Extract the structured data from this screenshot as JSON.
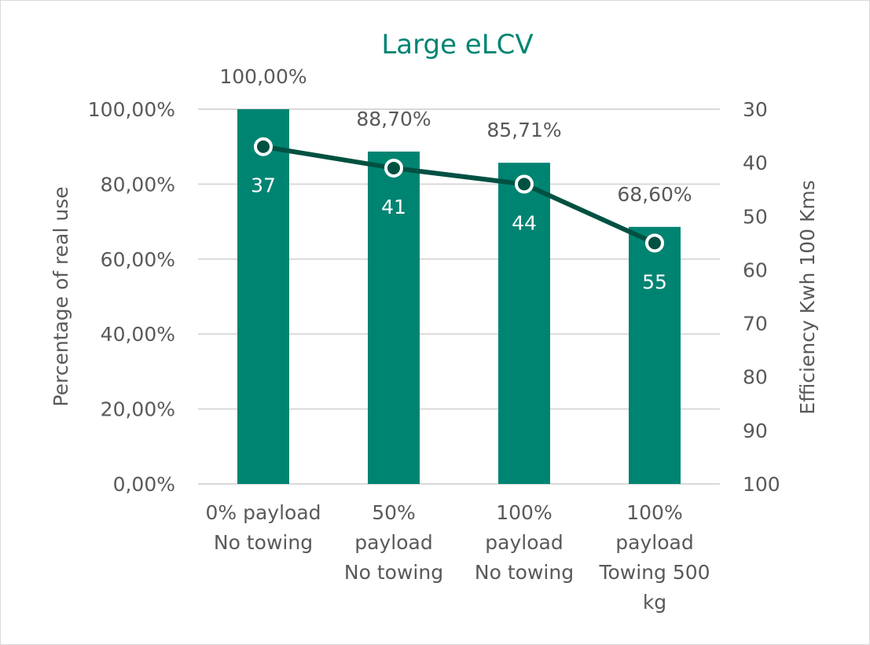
{
  "chart_data": {
    "type": "bar",
    "title": "Large eLCV",
    "categories": [
      [
        "0% payload",
        "No towing"
      ],
      [
        "50%",
        "payload",
        "No towing"
      ],
      [
        "100%",
        "payload",
        "No towing"
      ],
      [
        "100%",
        "payload",
        "Towing 500",
        "kg"
      ]
    ],
    "series": [
      {
        "name": "Percentage of real use",
        "type": "bar",
        "axis": "left",
        "values": [
          100.0,
          88.7,
          85.71,
          68.6
        ],
        "labels": [
          "100,00%",
          "88,70%",
          "85,71%",
          "68,60%"
        ]
      },
      {
        "name": "Efficiency Kwh 100 Kms",
        "type": "line",
        "axis": "right",
        "values": [
          37,
          41,
          44,
          55
        ],
        "labels": [
          "37",
          "41",
          "44",
          "55"
        ]
      }
    ],
    "ylabel": "Percentage of real use",
    "ylim": [
      0,
      100
    ],
    "yticks": [
      "0,00%",
      "20,00%",
      "40,00%",
      "60,00%",
      "80,00%",
      "100,00%"
    ],
    "y2label": "Efficiency Kwh  100 Kms",
    "y2lim": [
      30,
      100
    ],
    "y2_reversed": true,
    "y2ticks": [
      "30",
      "40",
      "50",
      "60",
      "70",
      "80",
      "90",
      "100"
    ],
    "grid": true
  },
  "colors": {
    "bar": "#008472",
    "line": "#005142",
    "title": "#008472",
    "text": "#595959",
    "grid": "#d9d9d9"
  }
}
